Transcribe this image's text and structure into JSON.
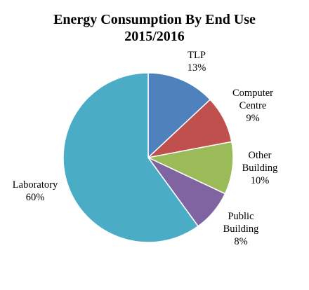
{
  "chart_data": {
    "type": "pie",
    "title": "Energy Consumption By End Use",
    "subtitle": "2015/2016",
    "slices": [
      {
        "label": "TLP",
        "value": 13,
        "display": "13%",
        "color": "#4F81BD"
      },
      {
        "label": "Computer Centre",
        "value": 9,
        "display": "9%",
        "color": "#C0504D"
      },
      {
        "label": "Other Building",
        "value": 10,
        "display": "10%",
        "color": "#9BBB59"
      },
      {
        "label": "Public Building",
        "value": 8,
        "display": "8%",
        "color": "#8064A2"
      },
      {
        "label": "Laboratory",
        "value": 60,
        "display": "60%",
        "color": "#4BACC6"
      }
    ]
  }
}
